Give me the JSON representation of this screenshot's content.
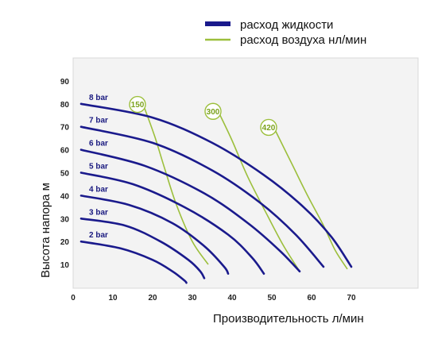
{
  "chart_data": {
    "type": "line",
    "xlabel": "Производительность  л/мин",
    "ylabel": "Высота напора  м",
    "xlim": [
      0,
      75
    ],
    "ylim": [
      0,
      100
    ],
    "x_ticks": [
      "0",
      "10",
      "20",
      "30",
      "40",
      "50",
      "60",
      "70"
    ],
    "y_ticks": [
      "10",
      "20",
      "30",
      "40",
      "50",
      "60",
      "70",
      "80",
      "90"
    ],
    "grid": false,
    "legend": {
      "position": "top-right",
      "entries": [
        {
          "label": "расход жидкости",
          "color": "#1a1a8c"
        },
        {
          "label": "расход воздуха нл/мин",
          "color": "#9cbf3c"
        }
      ]
    },
    "liquid_color": "#1a1a8c",
    "air_color": "#9cbf3c",
    "pressure_curves": [
      {
        "label": "8 bar",
        "points": [
          [
            2,
            80
          ],
          [
            20,
            74
          ],
          [
            35,
            63
          ],
          [
            48,
            49
          ],
          [
            58,
            35
          ],
          [
            65,
            22
          ],
          [
            70,
            9
          ]
        ]
      },
      {
        "label": "7 bar",
        "points": [
          [
            2,
            70
          ],
          [
            20,
            63
          ],
          [
            35,
            51
          ],
          [
            47,
            37
          ],
          [
            56,
            23
          ],
          [
            63,
            9
          ]
        ]
      },
      {
        "label": "6 bar",
        "points": [
          [
            2,
            60
          ],
          [
            18,
            53
          ],
          [
            33,
            41
          ],
          [
            44,
            28
          ],
          [
            52,
            16
          ],
          [
            57,
            7
          ]
        ]
      },
      {
        "label": "5 bar",
        "points": [
          [
            2,
            50
          ],
          [
            15,
            45
          ],
          [
            28,
            35
          ],
          [
            39,
            23
          ],
          [
            45,
            13
          ],
          [
            48,
            6
          ]
        ]
      },
      {
        "label": "4 bar",
        "points": [
          [
            2,
            40
          ],
          [
            14,
            36
          ],
          [
            25,
            28
          ],
          [
            33,
            18
          ],
          [
            38,
            9
          ],
          [
            39,
            6
          ]
        ]
      },
      {
        "label": "3 bar",
        "points": [
          [
            2,
            30
          ],
          [
            13,
            27
          ],
          [
            22,
            20
          ],
          [
            29,
            12
          ],
          [
            32,
            7
          ],
          [
            33,
            4
          ]
        ]
      },
      {
        "label": "2 bar",
        "points": [
          [
            2,
            20
          ],
          [
            12,
            17
          ],
          [
            20,
            12
          ],
          [
            25,
            7
          ],
          [
            28,
            3
          ],
          [
            28.5,
            2
          ]
        ]
      }
    ],
    "air_curves": [
      {
        "label": "150",
        "points": [
          [
            18,
            78
          ],
          [
            20.5,
            66
          ],
          [
            23,
            52
          ],
          [
            26,
            36
          ],
          [
            30,
            20
          ],
          [
            34,
            10
          ]
        ]
      },
      {
        "label": "300",
        "points": [
          [
            37,
            75
          ],
          [
            40,
            64
          ],
          [
            44,
            48
          ],
          [
            49,
            31
          ],
          [
            53,
            18
          ],
          [
            57,
            7
          ]
        ]
      },
      {
        "label": "420",
        "points": [
          [
            51,
            68
          ],
          [
            55,
            54
          ],
          [
            59,
            40
          ],
          [
            63,
            27
          ],
          [
            66,
            16
          ],
          [
            69,
            8
          ]
        ]
      }
    ]
  }
}
